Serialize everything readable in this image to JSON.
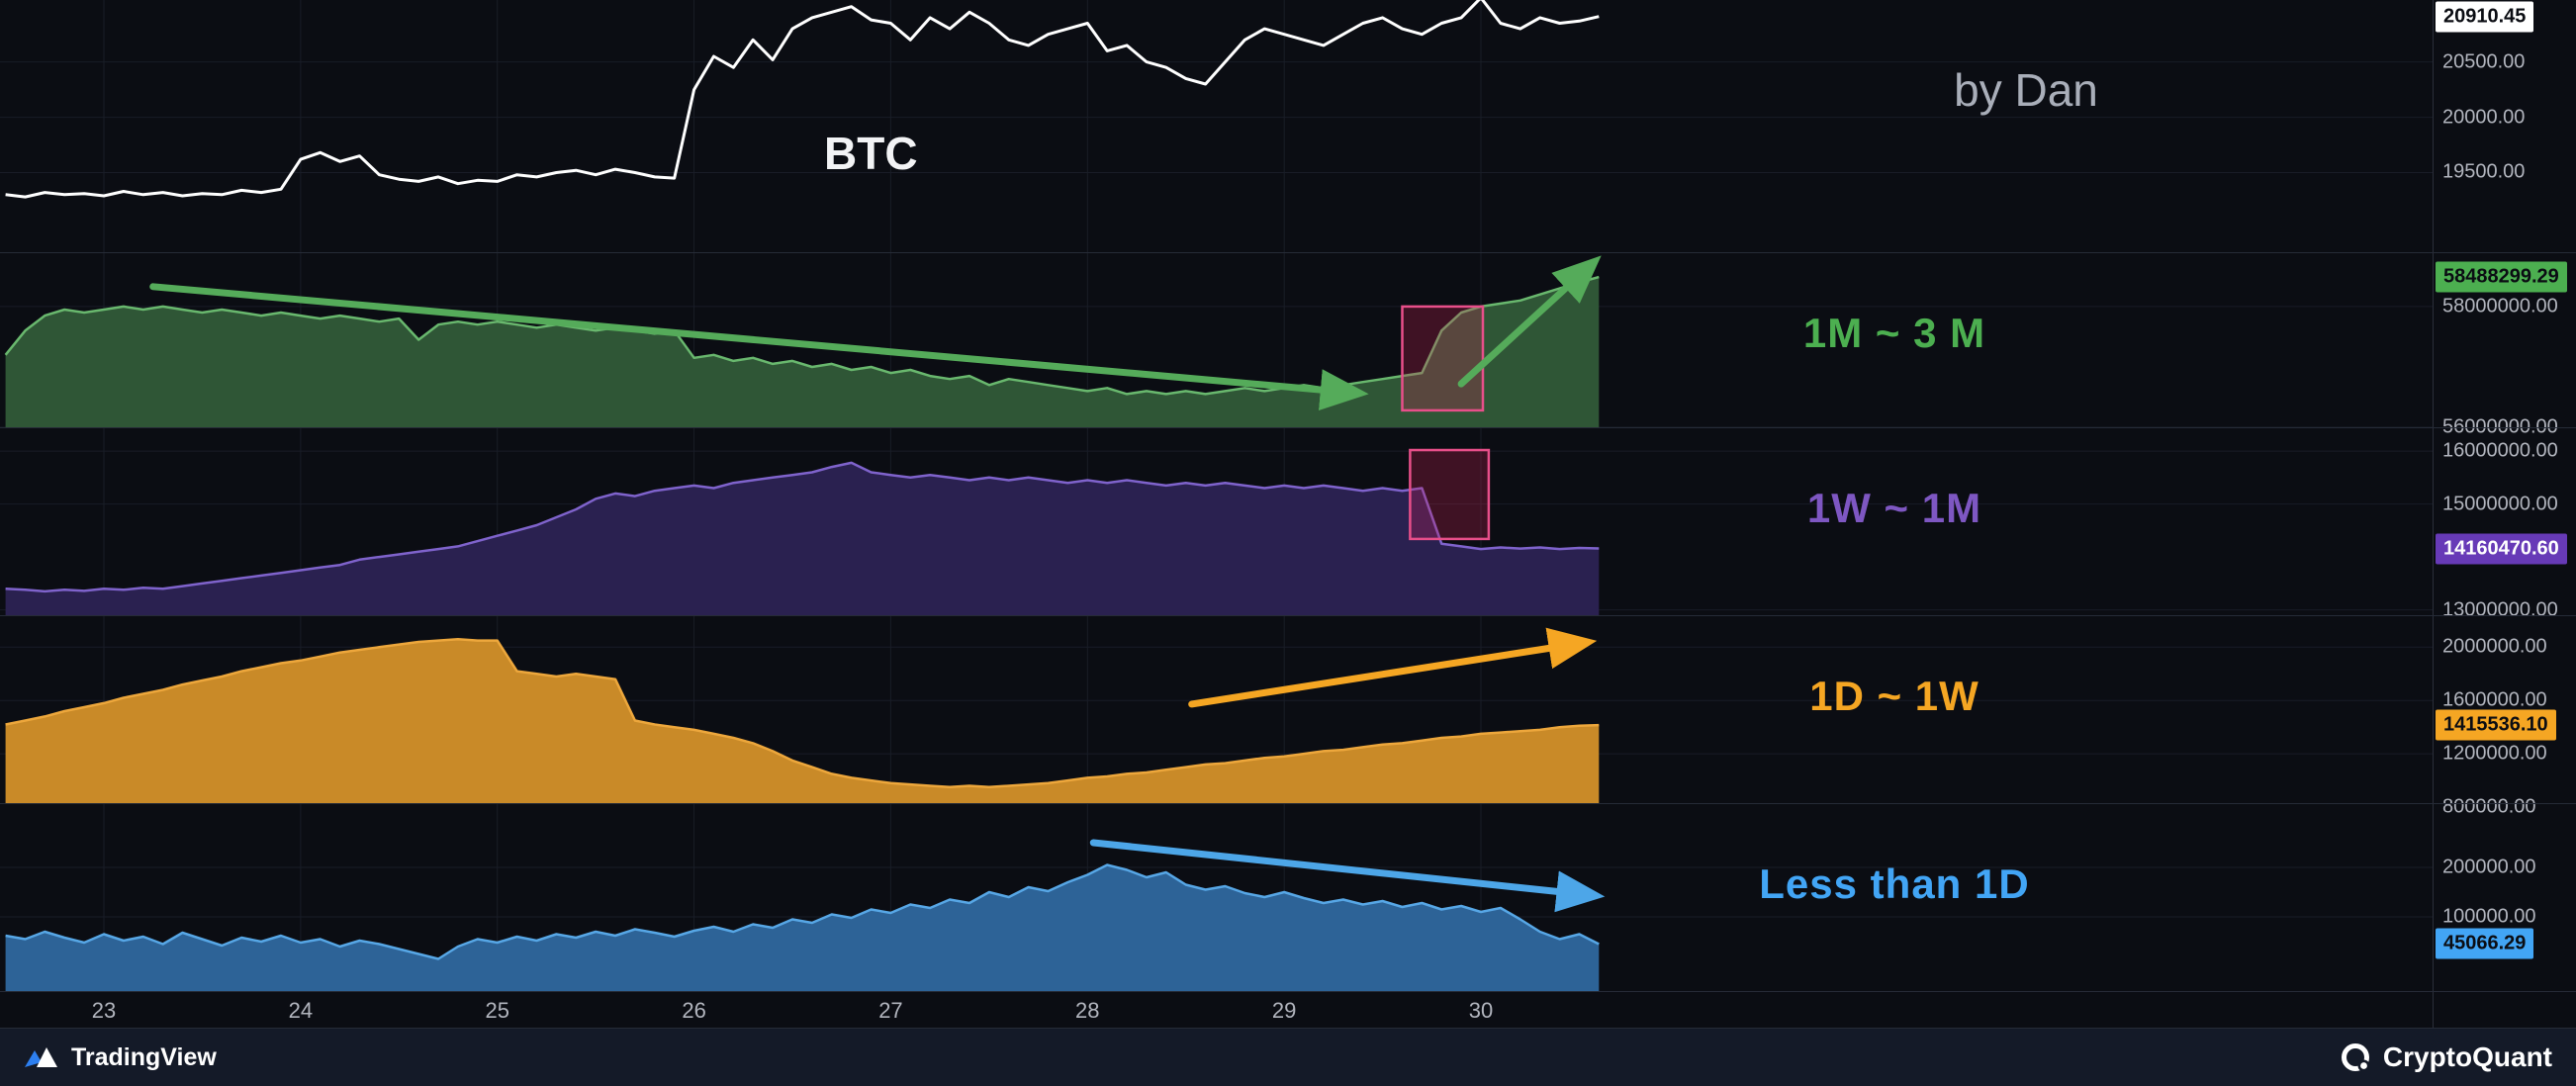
{
  "meta": {
    "symbol": "BTC",
    "byline": "by Dan"
  },
  "footer": {
    "left_brand": "TradingView",
    "right_brand": "CryptoQuant"
  },
  "colors": {
    "background": "#0b0d13",
    "panel_separator": "#262b37",
    "tick_text": "#b2b5be",
    "highlight_box_border": "#e84f8a",
    "green": "#4caf50",
    "purple": "#7e57c2",
    "orange": "#f5a623",
    "blue": "#42a5f5",
    "price_line": "#ffffff"
  },
  "chart_data": {
    "type": "area",
    "legend_position": "right-of-plot",
    "grid": true,
    "x_ticks": [
      23,
      24,
      25,
      26,
      27,
      28,
      29,
      30
    ],
    "x_tick_labels": [
      "23",
      "24",
      "25",
      "26",
      "27",
      "28",
      "29",
      "30"
    ],
    "x": [
      22.5,
      22.6,
      22.7,
      22.8,
      22.9,
      23,
      23.1,
      23.2,
      23.3,
      23.4,
      23.5,
      23.6,
      23.7,
      23.8,
      23.9,
      24,
      24.1,
      24.2,
      24.3,
      24.4,
      24.5,
      24.6,
      24.7,
      24.8,
      24.9,
      25,
      25.1,
      25.2,
      25.3,
      25.4,
      25.5,
      25.6,
      25.7,
      25.8,
      25.9,
      26,
      26.1,
      26.2,
      26.3,
      26.4,
      26.5,
      26.6,
      26.7,
      26.8,
      26.9,
      27,
      27.1,
      27.2,
      27.3,
      27.4,
      27.5,
      27.6,
      27.7,
      27.8,
      27.9,
      28,
      28.1,
      28.2,
      28.3,
      28.4,
      28.5,
      28.6,
      28.7,
      28.8,
      28.9,
      29,
      29.1,
      29.2,
      29.3,
      29.4,
      29.5,
      29.6,
      29.7,
      29.8,
      29.9,
      30,
      30.1,
      30.2,
      30.3,
      30.4,
      30.5,
      30.6
    ],
    "panels": [
      {
        "id": "price",
        "label": "BTC",
        "style": "line",
        "line_color": "#ffffff",
        "ylim": [
          18780,
          21060
        ],
        "yticks": [
          20500,
          20000,
          19500
        ],
        "ytick_labels": [
          "20500.00",
          "20000.00",
          "19500.00"
        ],
        "last_label": "20910.45",
        "badge_bg": "#ffffff",
        "badge_fg": "#0b0d13",
        "values": [
          19300,
          19280,
          19320,
          19300,
          19310,
          19290,
          19330,
          19300,
          19320,
          19290,
          19310,
          19300,
          19340,
          19320,
          19350,
          19620,
          19680,
          19600,
          19650,
          19480,
          19440,
          19420,
          19460,
          19400,
          19430,
          19420,
          19480,
          19460,
          19500,
          19520,
          19480,
          19530,
          19500,
          19460,
          19450,
          20250,
          20550,
          20450,
          20700,
          20520,
          20800,
          20900,
          20950,
          21000,
          20880,
          20850,
          20700,
          20900,
          20800,
          20950,
          20850,
          20700,
          20650,
          20750,
          20800,
          20850,
          20600,
          20650,
          20500,
          20450,
          20350,
          20300,
          20500,
          20700,
          20800,
          20750,
          20700,
          20650,
          20750,
          20850,
          20900,
          20800,
          20750,
          20850,
          20900,
          21080,
          20850,
          20800,
          20900,
          20850,
          20870,
          20910.45
        ]
      },
      {
        "id": "age-1m-3m",
        "label": "1M ~ 3 M",
        "style": "area",
        "line_color": "#69b86e",
        "fill_color": "#2f5636",
        "label_color": "#4caf50",
        "arrow_color": "#55ab5a",
        "ylim": [
          56000000,
          58900000
        ],
        "yticks": [
          58000000,
          56000000
        ],
        "ytick_labels": [
          "58000000.00",
          "56000000.00"
        ],
        "last_label": "58488299.29",
        "badge_bg": "#4caf50",
        "badge_fg": "#0b0d13",
        "values": [
          57200000,
          57600000,
          57850000,
          57950000,
          57900000,
          57950000,
          58000000,
          57950000,
          58000000,
          57950000,
          57900000,
          57950000,
          57900000,
          57850000,
          57900000,
          57850000,
          57800000,
          57850000,
          57800000,
          57750000,
          57800000,
          57450000,
          57700000,
          57750000,
          57700000,
          57750000,
          57700000,
          57650000,
          57700000,
          57650000,
          57600000,
          57650000,
          57600000,
          57550000,
          57600000,
          57150000,
          57200000,
          57100000,
          57150000,
          57050000,
          57100000,
          57000000,
          57050000,
          56950000,
          57000000,
          56900000,
          56950000,
          56850000,
          56800000,
          56850000,
          56700000,
          56800000,
          56750000,
          56700000,
          56650000,
          56600000,
          56650000,
          56550000,
          56600000,
          56550000,
          56600000,
          56550000,
          56600000,
          56650000,
          56600000,
          56650000,
          56700000,
          56650000,
          56700000,
          56750000,
          56800000,
          56850000,
          56900000,
          57600000,
          57900000,
          58000000,
          58050000,
          58100000,
          58200000,
          58300000,
          58400000,
          58488299.29
        ],
        "arrows": [
          {
            "x1": 23.25,
            "y1": 58330000,
            "x2": 29.36,
            "y2": 56570000
          },
          {
            "x1": 29.9,
            "y1": 56720000,
            "x2": 30.56,
            "y2": 58690000
          }
        ],
        "boxes": [
          {
            "x1": 29.6,
            "y1": 58000000,
            "x2": 30.01,
            "y2": 56280000
          }
        ]
      },
      {
        "id": "age-1w-1m",
        "label": "1W ~ 1M",
        "style": "area",
        "line_color": "#7f63cc",
        "fill_color": "#2a2150",
        "label_color": "#7e57c2",
        "arrow_color": "#7e57c2",
        "ylim": [
          12900000,
          16450000
        ],
        "yticks": [
          16000000,
          15000000,
          13000000
        ],
        "ytick_labels": [
          "16000000.00",
          "15000000.00",
          "13000000.00"
        ],
        "last_label": "14160470.60",
        "badge_bg": "#673ab7",
        "badge_fg": "#ffffff",
        "values": [
          13400000,
          13380000,
          13350000,
          13380000,
          13360000,
          13400000,
          13380000,
          13420000,
          13400000,
          13450000,
          13500000,
          13550000,
          13600000,
          13650000,
          13700000,
          13750000,
          13800000,
          13850000,
          13950000,
          14000000,
          14050000,
          14100000,
          14150000,
          14200000,
          14300000,
          14400000,
          14500000,
          14600000,
          14750000,
          14900000,
          15100000,
          15200000,
          15150000,
          15250000,
          15300000,
          15350000,
          15300000,
          15400000,
          15450000,
          15500000,
          15550000,
          15600000,
          15700000,
          15780000,
          15600000,
          15550000,
          15500000,
          15550000,
          15500000,
          15450000,
          15500000,
          15450000,
          15500000,
          15450000,
          15400000,
          15450000,
          15400000,
          15450000,
          15400000,
          15350000,
          15400000,
          15350000,
          15400000,
          15350000,
          15300000,
          15350000,
          15300000,
          15350000,
          15300000,
          15250000,
          15300000,
          15250000,
          15300000,
          14250000,
          14200000,
          14150000,
          14180000,
          14160000,
          14180000,
          14150000,
          14170000,
          14160470.6
        ],
        "boxes": [
          {
            "x1": 29.64,
            "y1": 16020000,
            "x2": 30.04,
            "y2": 14340000
          }
        ]
      },
      {
        "id": "age-1d-1w",
        "label": "1D ~ 1W",
        "style": "area",
        "line_color": "#eda73c",
        "fill_color": "#c98a28",
        "label_color": "#f5a623",
        "arrow_color": "#f5a623",
        "ylim": [
          830000,
          2240000
        ],
        "yticks": [
          2000000,
          1600000,
          1200000,
          800000
        ],
        "ytick_labels": [
          "2000000.00",
          "1600000.00",
          "1200000.00",
          "800000.00"
        ],
        "last_label": "1415536.10",
        "badge_bg": "#f5a623",
        "badge_fg": "#0b0d13",
        "values": [
          1420000,
          1450000,
          1480000,
          1520000,
          1550000,
          1580000,
          1620000,
          1650000,
          1680000,
          1720000,
          1750000,
          1780000,
          1820000,
          1850000,
          1880000,
          1900000,
          1930000,
          1960000,
          1980000,
          2000000,
          2020000,
          2040000,
          2050000,
          2060000,
          2050000,
          2050000,
          1820000,
          1800000,
          1780000,
          1800000,
          1780000,
          1760000,
          1450000,
          1420000,
          1400000,
          1380000,
          1350000,
          1320000,
          1280000,
          1220000,
          1150000,
          1100000,
          1050000,
          1020000,
          1000000,
          980000,
          970000,
          960000,
          950000,
          960000,
          950000,
          960000,
          970000,
          980000,
          1000000,
          1020000,
          1030000,
          1050000,
          1060000,
          1080000,
          1100000,
          1120000,
          1130000,
          1150000,
          1170000,
          1180000,
          1200000,
          1220000,
          1230000,
          1250000,
          1270000,
          1280000,
          1300000,
          1320000,
          1330000,
          1350000,
          1360000,
          1370000,
          1380000,
          1400000,
          1410000,
          1415536.1
        ],
        "arrows": [
          {
            "x1": 28.53,
            "y1": 1573000,
            "x2": 30.52,
            "y2": 2032000
          }
        ]
      },
      {
        "id": "age-lt-1d",
        "label": "Less than 1D",
        "style": "area",
        "line_color": "#57a7e6",
        "fill_color": "#2d6397",
        "label_color": "#42a5f5",
        "arrow_color": "#4da6e8",
        "ylim": [
          -50000,
          330000
        ],
        "yticks": [
          200000,
          100000
        ],
        "ytick_labels": [
          "200000.00",
          "100000.00"
        ],
        "last_label": "45066.29",
        "badge_bg": "#42a5f5",
        "badge_fg": "#0b0d13",
        "values": [
          62000,
          55000,
          70000,
          58000,
          48000,
          65000,
          52000,
          60000,
          45000,
          68000,
          55000,
          42000,
          58000,
          50000,
          62000,
          48000,
          55000,
          40000,
          52000,
          45000,
          35000,
          25000,
          15000,
          40000,
          55000,
          48000,
          60000,
          52000,
          65000,
          58000,
          70000,
          62000,
          75000,
          68000,
          60000,
          72000,
          80000,
          70000,
          85000,
          78000,
          95000,
          88000,
          105000,
          98000,
          115000,
          108000,
          125000,
          118000,
          135000,
          128000,
          150000,
          140000,
          160000,
          152000,
          170000,
          185000,
          205000,
          195000,
          180000,
          190000,
          165000,
          155000,
          162000,
          148000,
          140000,
          150000,
          138000,
          128000,
          135000,
          125000,
          132000,
          120000,
          128000,
          115000,
          122000,
          110000,
          118000,
          95000,
          70000,
          55000,
          65000,
          45066.29
        ],
        "arrows": [
          {
            "x1": 28.03,
            "y1": 250000,
            "x2": 30.56,
            "y2": 144000
          }
        ]
      }
    ]
  }
}
